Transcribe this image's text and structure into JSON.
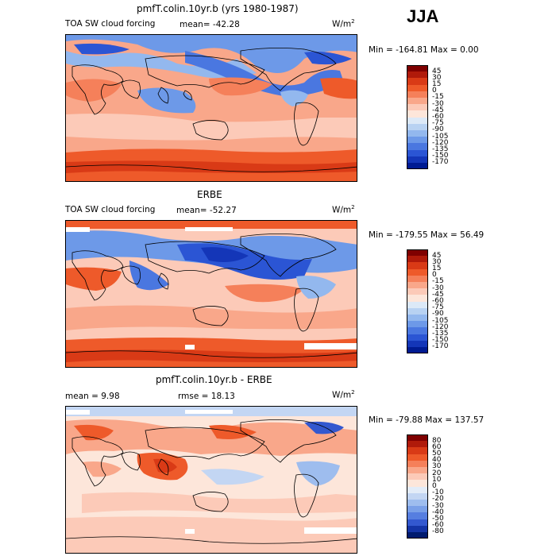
{
  "season": "JJA",
  "panels": [
    {
      "title": "pmfT.colin.10yr.b (yrs 1980-1987)",
      "left_label": "TOA SW cloud forcing",
      "mean_text": "mean= -42.28",
      "units": "W/m",
      "units_exp": "2",
      "minmax": "Min = -164.81 Max =    0.00",
      "colorbar_labels": [
        "45",
        "30",
        "15",
        "0",
        "-15",
        "-30",
        "-45",
        "-60",
        "-75",
        "-90",
        "-105",
        "-120",
        "-135",
        "-150",
        "-170"
      ]
    },
    {
      "title": "ERBE",
      "left_label": "TOA SW cloud forcing",
      "mean_text": "mean= -52.27",
      "units": "W/m",
      "units_exp": "2",
      "minmax": "Min = -179.55 Max =   56.49",
      "colorbar_labels": [
        "45",
        "30",
        "15",
        "0",
        "-15",
        "-30",
        "-45",
        "-60",
        "-75",
        "-90",
        "-105",
        "-120",
        "-135",
        "-150",
        "-170"
      ]
    },
    {
      "title": "pmfT.colin.10yr.b - ERBE",
      "left_label": "mean =    9.98",
      "mean_text": "rmse =   18.13",
      "units": "W/m",
      "units_exp": "2",
      "minmax": "Min = -79.88 Max = 137.57",
      "colorbar_labels": [
        "80",
        "60",
        "50",
        "40",
        "30",
        "20",
        "10",
        "0",
        "-10",
        "-20",
        "-30",
        "-40",
        "-50",
        "-60",
        "-80"
      ]
    }
  ],
  "colors": {
    "cf_scale": [
      "#7f0000",
      "#b01a0a",
      "#d93a16",
      "#ee5a2a",
      "#f5805a",
      "#f9a78a",
      "#fccab8",
      "#fde6da",
      "#dce9f7",
      "#b8d2f2",
      "#93b8ee",
      "#6d99e8",
      "#4a77e0",
      "#2b55d4",
      "#1436b8",
      "#001b92"
    ],
    "diff_scale": [
      "#7f0000",
      "#b01a0a",
      "#d93a16",
      "#ee5a2a",
      "#f5805a",
      "#f9a78a",
      "#fccab8",
      "#fde6da",
      "#e3ecf8",
      "#c3d6f3",
      "#9ebdee",
      "#7aa0e8",
      "#567ee0",
      "#3358cf",
      "#1434a6",
      "#001b6e"
    ]
  }
}
